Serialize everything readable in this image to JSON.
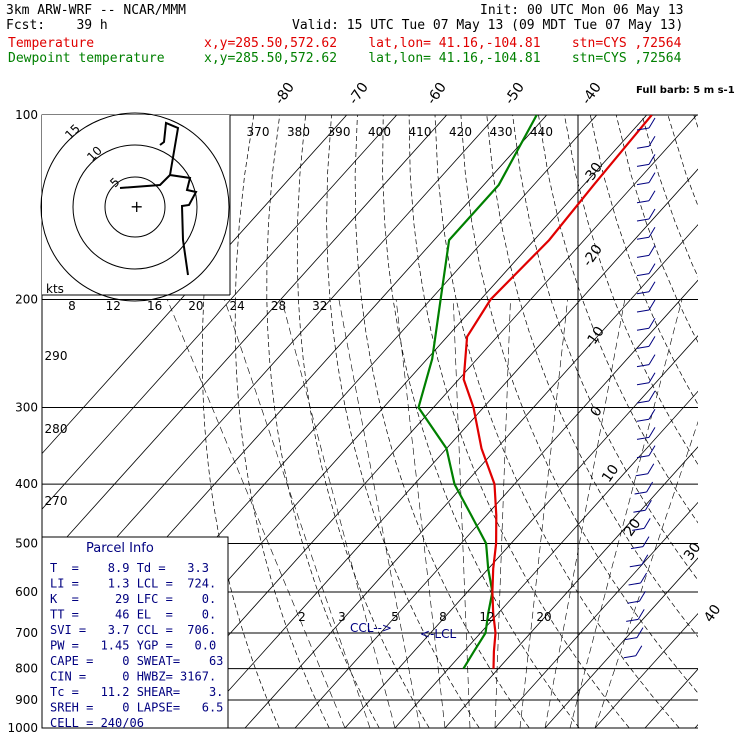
{
  "header": {
    "model": "3km ARW-WRF -- NCAR/MMM",
    "init": "Init: 00 UTC Mon 06 May 13",
    "fcst": "Fcst:    39 h",
    "valid": "Valid: 15 UTC Tue 07 May 13 (09 MDT Tue 07 May 13)",
    "temp_label": "Temperature",
    "dew_label": "Dewpoint temperature",
    "loc_text": "x,y=285.50,572.62    lat,lon= 41.16,-104.81    stn=CYS ,72564"
  },
  "colors": {
    "temperature": "#e00000",
    "dewpoint": "#008000",
    "wind": "#000080",
    "parcel": "#000080"
  },
  "chart_data": {
    "type": "skew-t",
    "y_scale": "log",
    "pressure_levels": [
      100,
      200,
      300,
      400,
      500,
      600,
      700,
      800,
      900,
      1000
    ],
    "isotherm_labels": [
      "-80",
      "-70",
      "-60",
      "-50",
      "-40",
      "-30",
      "-20",
      "-10",
      "0",
      "10",
      "20",
      "30",
      "40"
    ],
    "theta_labels": [
      "370",
      "380",
      "390",
      "400",
      "410",
      "420",
      "430",
      "440"
    ],
    "theta_side_labels": [
      "290",
      "280",
      "270"
    ],
    "hodo_speed_labels": [
      "8",
      "12",
      "16",
      "20",
      "24",
      "28",
      "32"
    ],
    "hodo_ring_labels": [
      "5",
      "10",
      "15"
    ],
    "hodo_units": "kts",
    "mixing_ratio_labels": [
      "2",
      "3",
      "5",
      "8",
      "12",
      "20"
    ],
    "wind_barb_key": "Full barb: 5 m s-1",
    "ccl_label": "CCL-->",
    "lcl_label": "<-LCL",
    "temperature": [
      {
        "p": 100,
        "t": -59
      },
      {
        "p": 130,
        "t": -58
      },
      {
        "p": 160,
        "t": -57
      },
      {
        "p": 200,
        "t": -58
      },
      {
        "p": 230,
        "t": -56
      },
      {
        "p": 270,
        "t": -49
      },
      {
        "p": 300,
        "t": -42
      },
      {
        "p": 350,
        "t": -33
      },
      {
        "p": 400,
        "t": -24
      },
      {
        "p": 450,
        "t": -18
      },
      {
        "p": 500,
        "t": -13
      },
      {
        "p": 550,
        "t": -9
      },
      {
        "p": 600,
        "t": -5
      },
      {
        "p": 650,
        "t": -1
      },
      {
        "p": 700,
        "t": 3
      },
      {
        "p": 750,
        "t": 6
      },
      {
        "p": 800,
        "t": 9
      }
    ],
    "dewpoint": [
      {
        "p": 100,
        "t": -82
      },
      {
        "p": 130,
        "t": -77
      },
      {
        "p": 160,
        "t": -77
      },
      {
        "p": 200,
        "t": -68
      },
      {
        "p": 250,
        "t": -59
      },
      {
        "p": 300,
        "t": -53
      },
      {
        "p": 350,
        "t": -40
      },
      {
        "p": 400,
        "t": -32
      },
      {
        "p": 450,
        "t": -23
      },
      {
        "p": 500,
        "t": -15
      },
      {
        "p": 550,
        "t": -10
      },
      {
        "p": 600,
        "t": -5
      },
      {
        "p": 650,
        "t": -2
      },
      {
        "p": 700,
        "t": 1
      },
      {
        "p": 750,
        "t": 2
      },
      {
        "p": 800,
        "t": 3
      }
    ]
  },
  "parcel": {
    "title": "Parcel Info",
    "rows": [
      "T  =    8.9 Td =   3.3",
      "LI =    1.3 LCL =  724.",
      "K  =     29 LFC =    0.",
      "TT =     46 EL  =    0.",
      "SVI =   3.7 CCL =  706.",
      "PW =   1.45 YGP =   0.0",
      "CAPE =    0 SWEAT=    63",
      "CIN =     0 HWBZ= 3167.",
      "Tc =   11.2 SHEAR=    3.",
      "SREH =    0 LAPSE=   6.5",
      "CELL = 240/06"
    ]
  }
}
